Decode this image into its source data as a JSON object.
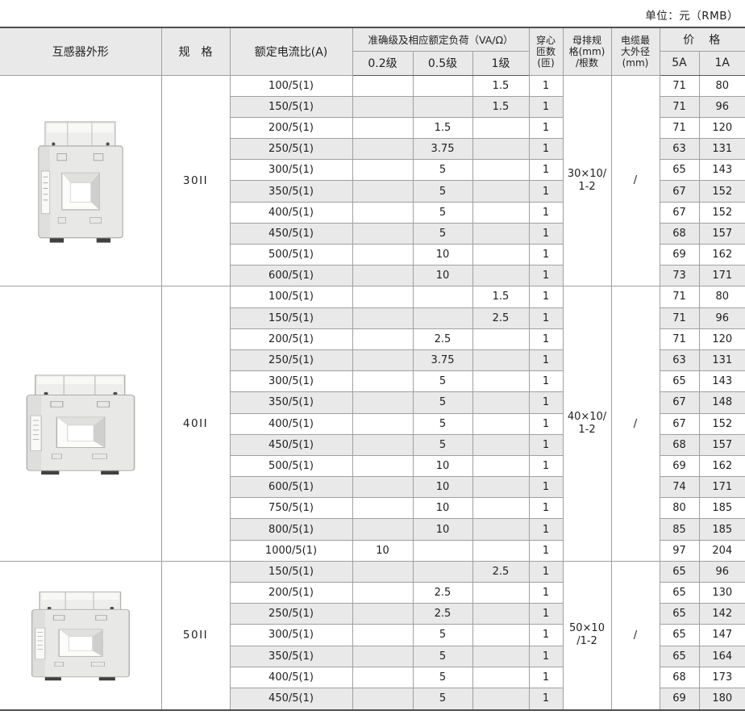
{
  "unit_label": "单位：元（RMB）",
  "colors": {
    "row_band": "#e9e9e9",
    "header_bg": "#e9e9e9",
    "border_dark": "#4f4f4f",
    "border_light": "#a0a0a0"
  },
  "table": {
    "header": {
      "shape": "互感器外形",
      "spec": "规　格",
      "ratio": "额定电流比(A)",
      "accuracy_group": "准确级及相应额定负荷（VA/Ω）",
      "classes": [
        "0.2级",
        "0.5级",
        "1级"
      ],
      "turns_lines": [
        "穿心",
        "匝数",
        "(匝)"
      ],
      "busbar_lines": [
        "母排规",
        "格(mm)",
        "/根数"
      ],
      "cable_lines": [
        "电缆最",
        "大外径",
        "(mm)"
      ],
      "price": "价　格",
      "price_cols": [
        "5A",
        "1A"
      ]
    },
    "row_fields": [
      "ratio",
      "class_0_2",
      "class_0_5",
      "class_1",
      "turns",
      "price_5a",
      "price_1a"
    ],
    "sections": [
      {
        "spec": "30II",
        "busbar_lines": [
          "30×10/",
          "1-2"
        ],
        "cable": "/",
        "rows": [
          [
            "100/5(1)",
            "",
            "",
            "1.5",
            "1",
            "71",
            "80"
          ],
          [
            "150/5(1)",
            "",
            "",
            "1.5",
            "1",
            "71",
            "96"
          ],
          [
            "200/5(1)",
            "",
            "1.5",
            "",
            "1",
            "71",
            "120"
          ],
          [
            "250/5(1)",
            "",
            "3.75",
            "",
            "1",
            "63",
            "131"
          ],
          [
            "300/5(1)",
            "",
            "5",
            "",
            "1",
            "65",
            "143"
          ],
          [
            "350/5(1)",
            "",
            "5",
            "",
            "1",
            "67",
            "152"
          ],
          [
            "400/5(1)",
            "",
            "5",
            "",
            "1",
            "67",
            "152"
          ],
          [
            "450/5(1)",
            "",
            "5",
            "",
            "1",
            "68",
            "157"
          ],
          [
            "500/5(1)",
            "",
            "10",
            "",
            "1",
            "69",
            "162"
          ],
          [
            "600/5(1)",
            "",
            "10",
            "",
            "1",
            "73",
            "171"
          ]
        ]
      },
      {
        "spec": "40II",
        "busbar_lines": [
          "40×10/",
          "1-2"
        ],
        "cable": "/",
        "rows": [
          [
            "100/5(1)",
            "",
            "",
            "1.5",
            "1",
            "71",
            "80"
          ],
          [
            "150/5(1)",
            "",
            "",
            "2.5",
            "1",
            "71",
            "96"
          ],
          [
            "200/5(1)",
            "",
            "2.5",
            "",
            "1",
            "71",
            "120"
          ],
          [
            "250/5(1)",
            "",
            "3.75",
            "",
            "1",
            "63",
            "131"
          ],
          [
            "300/5(1)",
            "",
            "5",
            "",
            "1",
            "65",
            "143"
          ],
          [
            "350/5(1)",
            "",
            "5",
            "",
            "1",
            "67",
            "148"
          ],
          [
            "400/5(1)",
            "",
            "5",
            "",
            "1",
            "67",
            "152"
          ],
          [
            "450/5(1)",
            "",
            "5",
            "",
            "1",
            "68",
            "157"
          ],
          [
            "500/5(1)",
            "",
            "10",
            "",
            "1",
            "69",
            "162"
          ],
          [
            "600/5(1)",
            "",
            "10",
            "",
            "1",
            "74",
            "171"
          ],
          [
            "750/5(1)",
            "",
            "10",
            "",
            "1",
            "80",
            "185"
          ],
          [
            "800/5(1)",
            "",
            "10",
            "",
            "1",
            "85",
            "185"
          ],
          [
            "1000/5(1)",
            "10",
            "",
            "",
            "1",
            "97",
            "204"
          ]
        ]
      },
      {
        "spec": "50II",
        "busbar_lines": [
          "50×10",
          "/1-2"
        ],
        "cable": "/",
        "rows": [
          [
            "150/5(1)",
            "",
            "",
            "2.5",
            "1",
            "65",
            "96"
          ],
          [
            "200/5(1)",
            "",
            "2.5",
            "",
            "1",
            "65",
            "130"
          ],
          [
            "250/5(1)",
            "",
            "2.5",
            "",
            "1",
            "65",
            "142"
          ],
          [
            "300/5(1)",
            "",
            "5",
            "",
            "1",
            "65",
            "147"
          ],
          [
            "350/5(1)",
            "",
            "5",
            "",
            "1",
            "65",
            "164"
          ],
          [
            "400/5(1)",
            "",
            "5",
            "",
            "1",
            "68",
            "173"
          ],
          [
            "450/5(1)",
            "",
            "5",
            "",
            "1",
            "69",
            "180"
          ]
        ]
      }
    ]
  }
}
